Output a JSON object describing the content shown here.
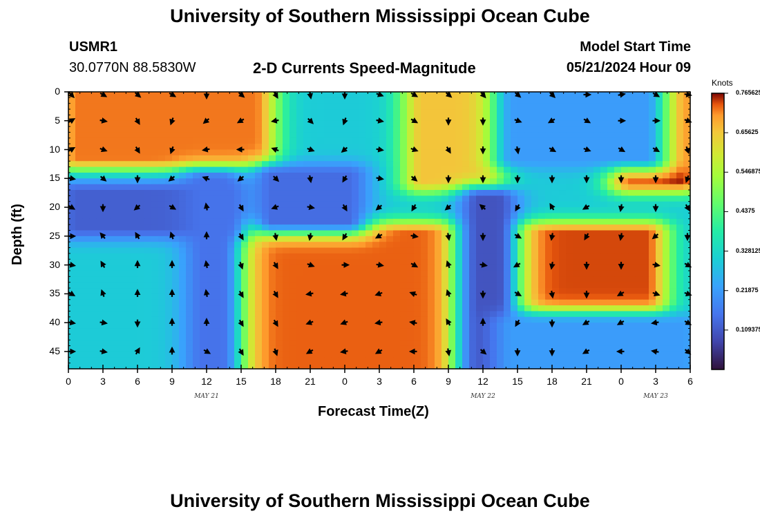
{
  "header": {
    "title_top": "University of Southern Mississippi Ocean Cube",
    "station": "USMR1",
    "coords": "30.0770N  88.5830W",
    "subtitle": "2-D Currents Speed-Magnitude",
    "model_label": "Model Start Time",
    "model_time": "05/21/2024 Hour 09",
    "title_bottom": "University of Southern Mississippi Ocean Cube"
  },
  "chart_data": {
    "type": "heatmap",
    "title": "2-D Currents Speed-Magnitude",
    "xlabel": "Forecast Time(Z)",
    "ylabel": "Depth (ft)",
    "x_hours": [
      0,
      3,
      6,
      9,
      12,
      15,
      18,
      21,
      24,
      27,
      30,
      33,
      36,
      39,
      42,
      45,
      48,
      51,
      54
    ],
    "x_tick_labels": [
      "0",
      "3",
      "6",
      "9",
      "12",
      "15",
      "18",
      "21",
      "0",
      "3",
      "6",
      "9",
      "12",
      "15",
      "18",
      "21",
      "0",
      "3",
      "6"
    ],
    "x_range": [
      0,
      54
    ],
    "date_labels": [
      {
        "label": "MAY 21",
        "hour": 12
      },
      {
        "label": "MAY 22",
        "hour": 36
      },
      {
        "label": "MAY 23",
        "hour": 51
      }
    ],
    "y_ticks": [
      0,
      5,
      10,
      15,
      20,
      25,
      30,
      35,
      40,
      45
    ],
    "y_range": [
      0,
      48
    ],
    "colorbar": {
      "unit": "Knots",
      "min": 0.0,
      "max": 0.765625,
      "tick_labels": [
        "0.765625",
        "0.65625",
        "0.546875",
        "0.4375",
        "0.328125",
        "0.21875",
        "0.109375"
      ],
      "tick_values": [
        0.765625,
        0.65625,
        0.546875,
        0.4375,
        0.328125,
        0.21875,
        0.109375
      ]
    },
    "regions": [
      {
        "name": "top-left surface jet",
        "x": [
          0,
          17
        ],
        "depth": [
          0,
          12
        ],
        "speed": 0.72
      },
      {
        "name": "mid-top core",
        "x": [
          30,
          37
        ],
        "depth": [
          0,
          16
        ],
        "speed": 0.66
      },
      {
        "name": "top-right surface jet",
        "x": [
          48,
          54
        ],
        "depth": [
          0,
          16
        ],
        "speed": 0.76
      },
      {
        "name": "lower-middle core",
        "x": [
          15,
          33
        ],
        "depth": [
          24,
          48
        ],
        "speed": 0.73
      },
      {
        "name": "lower-right core",
        "x": [
          39,
          51
        ],
        "depth": [
          24,
          37
        ],
        "speed": 0.74
      },
      {
        "name": "slow band 20ft",
        "x": [
          0,
          14
        ],
        "depth": [
          17,
          24
        ],
        "speed": 0.12
      },
      {
        "name": "slow patch",
        "x": [
          17,
          25
        ],
        "depth": [
          14,
          23
        ],
        "speed": 0.14
      },
      {
        "name": "slow column",
        "x": [
          35,
          38
        ],
        "depth": [
          18,
          48
        ],
        "speed": 0.1
      },
      {
        "name": "slow column 2",
        "x": [
          11,
          14
        ],
        "depth": [
          15,
          48
        ],
        "speed": 0.15
      },
      {
        "name": "slow patch right",
        "x": [
          38,
          51
        ],
        "depth": [
          0,
          12
        ],
        "speed": 0.22
      },
      {
        "name": "slow patch right bottom",
        "x": [
          38,
          54
        ],
        "depth": [
          40,
          48
        ],
        "speed": 0.22
      }
    ],
    "background_speed": 0.3,
    "vector_rows": [
      {
        "depth": 0,
        "angles": [
          45,
          30,
          40,
          30,
          90,
          40,
          60,
          80,
          90,
          20,
          30,
          40,
          50,
          40,
          45,
          0,
          -10,
          30,
          10
        ]
      },
      {
        "depth": 5,
        "angles": [
          -30,
          10,
          60,
          110,
          140,
          150,
          170,
          45,
          110,
          10,
          30,
          90,
          90,
          20,
          150,
          30,
          0,
          0,
          20
        ]
      },
      {
        "depth": 10,
        "angles": [
          -30,
          20,
          60,
          110,
          170,
          180,
          200,
          20,
          140,
          10,
          20,
          60,
          90,
          80,
          30,
          20,
          30,
          30,
          70
        ]
      },
      {
        "depth": 15,
        "angles": [
          10,
          40,
          90,
          140,
          200,
          140,
          45,
          80,
          120,
          10,
          40,
          90,
          90,
          90,
          90,
          90,
          90,
          90,
          110
        ]
      },
      {
        "depth": 20,
        "angles": [
          30,
          90,
          140,
          30,
          260,
          60,
          160,
          10,
          60,
          140,
          120,
          140,
          220,
          120,
          240,
          150,
          100,
          90,
          60
        ]
      },
      {
        "depth": 25,
        "angles": [
          0,
          230,
          240,
          250,
          270,
          60,
          80,
          100,
          120,
          150,
          10,
          80,
          90,
          30,
          100,
          120,
          100,
          140,
          90
        ]
      },
      {
        "depth": 30,
        "angles": [
          10,
          240,
          270,
          270,
          260,
          70,
          60,
          20,
          0,
          10,
          30,
          250,
          10,
          150,
          100,
          90,
          90,
          10,
          30
        ]
      },
      {
        "depth": 35,
        "angles": [
          30,
          250,
          270,
          270,
          260,
          60,
          60,
          170,
          170,
          160,
          200,
          250,
          90,
          30,
          80,
          90,
          150,
          20,
          20
        ]
      },
      {
        "depth": 40,
        "angles": [
          10,
          10,
          90,
          270,
          270,
          60,
          60,
          160,
          160,
          170,
          190,
          240,
          270,
          120,
          90,
          150,
          150,
          170,
          30
        ]
      },
      {
        "depth": 45,
        "angles": [
          0,
          10,
          300,
          270,
          30,
          60,
          70,
          150,
          170,
          150,
          180,
          80,
          40,
          90,
          90,
          150,
          180,
          190,
          40
        ]
      }
    ]
  }
}
